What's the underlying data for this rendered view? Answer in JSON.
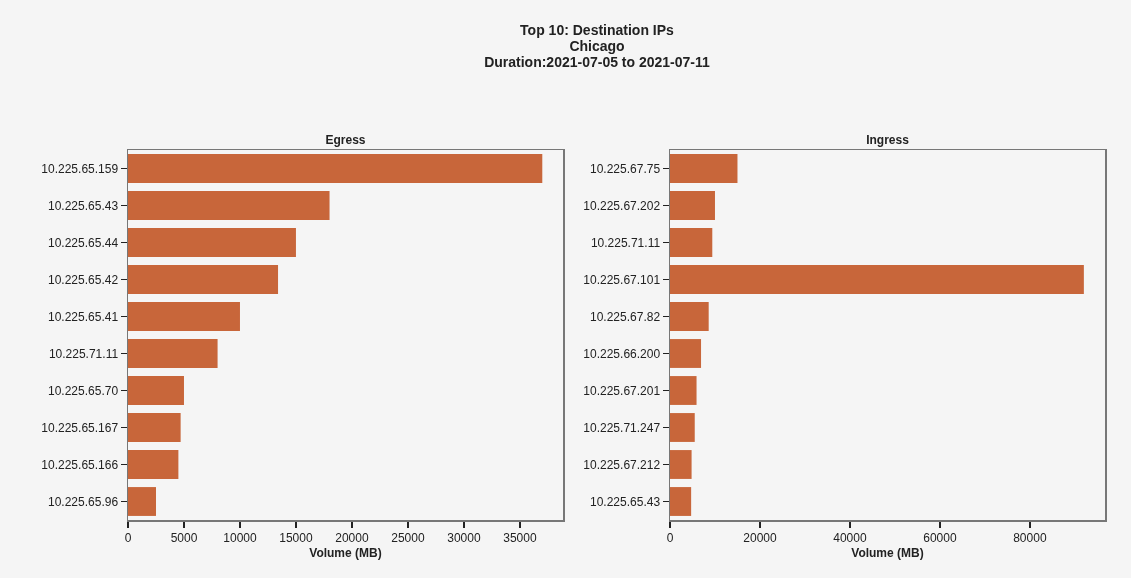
{
  "chart_data": [
    {
      "type": "bar",
      "orientation": "horizontal",
      "title": "Egress",
      "xlabel": "Volume (MB)",
      "annotations": [
        "Top 10: Destination IPs\nChicago\nDuration:2021-07-05 to 2021-07-11"
      ],
      "categories": [
        "10.225.65.159",
        "10.225.65.43",
        "10.225.65.44",
        "10.225.65.42",
        "10.225.65.41",
        "10.225.71.11",
        "10.225.65.70",
        "10.225.65.167",
        "10.225.65.166",
        "10.225.65.96"
      ],
      "values": [
        37000,
        18000,
        15000,
        13400,
        10000,
        8000,
        5000,
        4700,
        4500,
        2500
      ],
      "color": "#c8663a",
      "xlim": [
        0,
        38850
      ],
      "xticks": [
        0,
        5000,
        10000,
        15000,
        20000,
        25000,
        30000,
        35000
      ],
      "grid": false,
      "legend": false
    },
    {
      "type": "bar",
      "orientation": "horizontal",
      "title": "Ingress",
      "xlabel": "Volume (MB)",
      "categories": [
        "10.225.67.75",
        "10.225.67.202",
        "10.225.71.11",
        "10.225.67.101",
        "10.225.67.82",
        "10.225.66.200",
        "10.225.67.201",
        "10.225.71.247",
        "10.225.67.212",
        "10.225.65.43"
      ],
      "values": [
        15000,
        10000,
        9400,
        92000,
        8600,
        6900,
        5900,
        5500,
        4800,
        4700
      ],
      "color": "#c8663a",
      "xlim": [
        0,
        96700
      ],
      "xticks": [
        0,
        20000,
        40000,
        60000,
        80000
      ],
      "grid": false,
      "legend": false
    }
  ]
}
